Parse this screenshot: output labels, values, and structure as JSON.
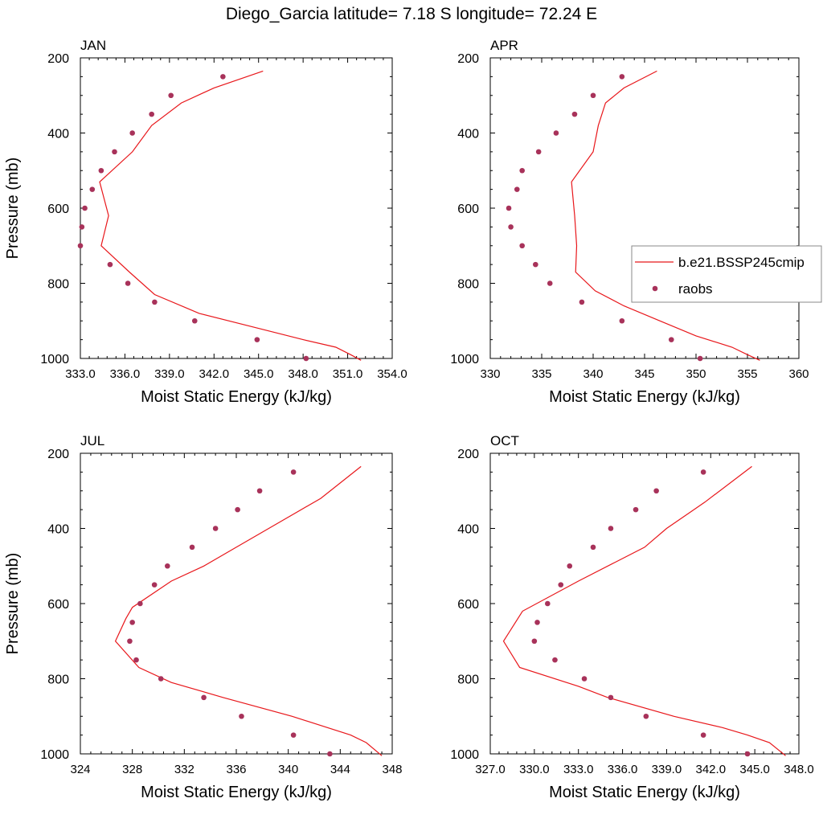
{
  "title": "Diego_Garcia  latitude= 7.18 S longitude= 72.24 E",
  "colors": {
    "model": "#e8171b",
    "raobs": "#a8325a"
  },
  "chart_data": [
    {
      "type": "line",
      "panel_label": "JAN",
      "xlabel": "Moist Static Energy (kJ/kg)",
      "ylabel": "Pressure (mb)",
      "xlim": [
        333.0,
        354.0
      ],
      "ylim": [
        1000,
        200
      ],
      "y_reversed": true,
      "x_ticks": [
        "333.0",
        "336.0",
        "339.0",
        "342.0",
        "345.0",
        "348.0",
        "351.0",
        "354.0"
      ],
      "x_tick_values": [
        333,
        336,
        339,
        342,
        345,
        348,
        351,
        354
      ],
      "y_ticks": [
        "200",
        "400",
        "600",
        "800",
        "1000"
      ],
      "y_tick_values": [
        200,
        400,
        600,
        800,
        1000
      ],
      "series": [
        {
          "name": "b.e21.BSSP245cmip",
          "kind": "line",
          "x": [
            351.9,
            351.2,
            350.2,
            348.0,
            345.0,
            341.0,
            338.0,
            336.3,
            334.4,
            334.9,
            334.3,
            336.5,
            337.8,
            339.8,
            342.0,
            345.3
          ],
          "y": [
            1005,
            990,
            970,
            950,
            920,
            880,
            830,
            770,
            700,
            620,
            530,
            450,
            380,
            320,
            280,
            235
          ]
        },
        {
          "name": "raobs",
          "kind": "scatter",
          "x": [
            348.2,
            344.9,
            340.7,
            338.0,
            336.2,
            335.0,
            333.0,
            333.1,
            333.3,
            333.8,
            334.4,
            335.3,
            336.5,
            337.8,
            339.1,
            342.6
          ],
          "y": [
            1000,
            950,
            900,
            850,
            800,
            750,
            700,
            650,
            600,
            550,
            500,
            450,
            400,
            350,
            300,
            250
          ]
        }
      ]
    },
    {
      "type": "line",
      "panel_label": "APR",
      "xlabel": "Moist Static Energy (kJ/kg)",
      "ylabel": "",
      "xlim": [
        330,
        360
      ],
      "ylim": [
        1000,
        200
      ],
      "y_reversed": true,
      "x_ticks": [
        "330",
        "335",
        "340",
        "345",
        "350",
        "355",
        "360"
      ],
      "x_tick_values": [
        330,
        335,
        340,
        345,
        350,
        355,
        360
      ],
      "y_ticks": [
        "200",
        "400",
        "600",
        "800",
        "1000"
      ],
      "y_tick_values": [
        200,
        400,
        600,
        800,
        1000
      ],
      "series": [
        {
          "name": "b.e21.BSSP245cmip",
          "kind": "line",
          "x": [
            356.2,
            355.0,
            353.5,
            350.0,
            346.5,
            343.0,
            340.2,
            338.3,
            338.4,
            338.2,
            337.9,
            340.0,
            340.5,
            341.2,
            343.0,
            346.2
          ],
          "y": [
            1005,
            990,
            970,
            940,
            900,
            860,
            820,
            770,
            700,
            620,
            530,
            450,
            380,
            320,
            280,
            235
          ]
        },
        {
          "name": "raobs",
          "kind": "scatter",
          "x": [
            350.4,
            347.6,
            342.8,
            338.9,
            335.8,
            334.4,
            333.1,
            332.0,
            331.8,
            332.6,
            333.1,
            334.7,
            336.4,
            338.2,
            340.0,
            342.8
          ],
          "y": [
            1000,
            950,
            900,
            850,
            800,
            750,
            700,
            650,
            600,
            550,
            500,
            450,
            400,
            350,
            300,
            250
          ]
        }
      ]
    },
    {
      "type": "line",
      "panel_label": "JUL",
      "xlabel": "Moist Static Energy (kJ/kg)",
      "ylabel": "Pressure (mb)",
      "xlim": [
        324,
        348
      ],
      "ylim": [
        1000,
        200
      ],
      "y_reversed": true,
      "x_ticks": [
        "324",
        "328",
        "332",
        "336",
        "340",
        "344",
        "348"
      ],
      "x_tick_values": [
        324,
        328,
        332,
        336,
        340,
        344,
        348
      ],
      "y_ticks": [
        "200",
        "400",
        "600",
        "800",
        "1000"
      ],
      "y_tick_values": [
        200,
        400,
        600,
        800,
        1000
      ],
      "series": [
        {
          "name": "b.e21.BSSP245cmip",
          "kind": "line",
          "x": [
            347.2,
            346.0,
            344.8,
            340.3,
            335.0,
            331.0,
            328.5,
            326.7,
            327.5,
            328.0,
            331.0,
            333.5,
            336.0,
            339.5,
            342.5,
            345.6
          ],
          "y": [
            1005,
            970,
            950,
            900,
            850,
            810,
            770,
            700,
            640,
            610,
            540,
            500,
            450,
            380,
            320,
            235
          ]
        },
        {
          "name": "raobs",
          "kind": "scatter",
          "x": [
            343.2,
            340.4,
            336.4,
            333.5,
            330.2,
            328.3,
            327.8,
            328.0,
            328.6,
            329.7,
            330.7,
            332.6,
            334.4,
            336.1,
            337.8,
            340.4
          ],
          "y": [
            1000,
            950,
            900,
            850,
            800,
            750,
            700,
            650,
            600,
            550,
            500,
            450,
            400,
            350,
            300,
            250
          ]
        }
      ]
    },
    {
      "type": "line",
      "panel_label": "OCT",
      "xlabel": "Moist Static Energy (kJ/kg)",
      "ylabel": "",
      "xlim": [
        327.0,
        348.0
      ],
      "ylim": [
        1000,
        200
      ],
      "y_reversed": true,
      "x_ticks": [
        "327.0",
        "330.0",
        "333.0",
        "336.0",
        "339.0",
        "342.0",
        "345.0",
        "348.0"
      ],
      "x_tick_values": [
        327,
        330,
        333,
        336,
        339,
        342,
        345,
        348
      ],
      "y_ticks": [
        "200",
        "400",
        "600",
        "800",
        "1000"
      ],
      "y_tick_values": [
        200,
        400,
        600,
        800,
        1000
      ],
      "series": [
        {
          "name": "b.e21.BSSP245cmip",
          "kind": "line",
          "x": [
            347.1,
            346.0,
            344.5,
            342.8,
            339.5,
            335.0,
            333.0,
            329.0,
            327.9,
            329.2,
            333.0,
            335.5,
            337.5,
            339.0,
            341.6,
            344.8
          ],
          "y": [
            1005,
            970,
            950,
            930,
            900,
            850,
            820,
            770,
            700,
            620,
            540,
            490,
            450,
            400,
            330,
            235
          ]
        },
        {
          "name": "raobs",
          "kind": "scatter",
          "x": [
            344.5,
            341.5,
            337.6,
            335.2,
            333.4,
            331.4,
            330.0,
            330.2,
            330.9,
            331.8,
            332.4,
            334.0,
            335.2,
            336.9,
            338.3,
            341.5
          ],
          "y": [
            1000,
            950,
            900,
            850,
            800,
            750,
            700,
            650,
            600,
            550,
            500,
            450,
            400,
            350,
            300,
            250
          ]
        }
      ]
    }
  ],
  "legend": {
    "placement": "right of APR panel",
    "entries": [
      {
        "label": "b.e21.BSSP245cmip",
        "kind": "line"
      },
      {
        "label": "raobs",
        "kind": "marker"
      }
    ]
  }
}
